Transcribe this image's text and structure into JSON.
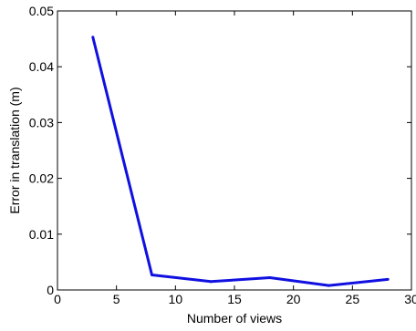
{
  "chart_data": {
    "type": "line",
    "title": "",
    "xlabel": "Number of views",
    "ylabel": "Error in translation (m)",
    "xlim": [
      0,
      30
    ],
    "ylim": [
      0,
      0.05
    ],
    "xticks": [
      0,
      5,
      10,
      15,
      20,
      25,
      30
    ],
    "yticks": [
      0,
      0.01,
      0.02,
      0.03,
      0.04,
      0.05
    ],
    "xtick_labels": [
      "0",
      "5",
      "10",
      "15",
      "20",
      "25",
      "30"
    ],
    "ytick_labels": [
      "0",
      "0.01",
      "0.02",
      "0.03",
      "0.04",
      "0.05"
    ],
    "grid": false,
    "series": [
      {
        "color": "#1010e0",
        "x": [
          3,
          8,
          13,
          18,
          23,
          28
        ],
        "y": [
          0.0453,
          0.0027,
          0.0015,
          0.0022,
          0.0008,
          0.0019
        ]
      }
    ]
  }
}
